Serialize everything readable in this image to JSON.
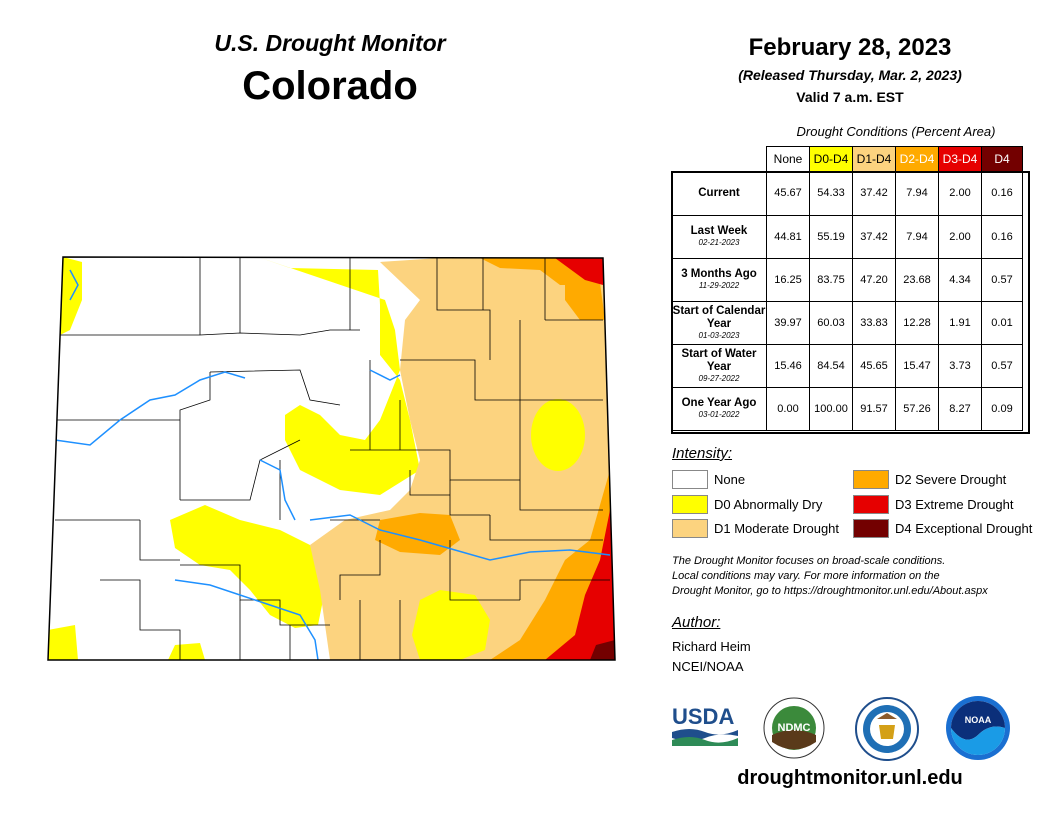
{
  "header": {
    "subtitle": "U.S. Drought Monitor",
    "state": "Colorado",
    "date": "February 28, 2023",
    "released": "(Released Thursday, Mar. 2, 2023)",
    "valid": "Valid 7 a.m. EST"
  },
  "table": {
    "caption": "Drought Conditions (Percent Area)",
    "columns": [
      {
        "label": "None",
        "color": "#ffffff"
      },
      {
        "label": "D0-D4",
        "color": "#ffff00"
      },
      {
        "label": "D1-D4",
        "color": "#fcd37f"
      },
      {
        "label": "D2-D4",
        "color": "#ffaa00"
      },
      {
        "label": "D3-D4",
        "color": "#e60000"
      },
      {
        "label": "D4",
        "color": "#730000"
      }
    ],
    "rows": [
      {
        "label": "Current",
        "date": "",
        "values": [
          "45.67",
          "54.33",
          "37.42",
          "7.94",
          "2.00",
          "0.16"
        ]
      },
      {
        "label": "Last Week",
        "date": "02-21-2023",
        "values": [
          "44.81",
          "55.19",
          "37.42",
          "7.94",
          "2.00",
          "0.16"
        ]
      },
      {
        "label": "3 Months Ago",
        "date": "11-29-2022",
        "values": [
          "16.25",
          "83.75",
          "47.20",
          "23.68",
          "4.34",
          "0.57"
        ]
      },
      {
        "label": "Start of Calendar Year",
        "date": "01-03-2023",
        "values": [
          "39.97",
          "60.03",
          "33.83",
          "12.28",
          "1.91",
          "0.01"
        ]
      },
      {
        "label": "Start of Water Year",
        "date": "09-27-2022",
        "values": [
          "15.46",
          "84.54",
          "45.65",
          "15.47",
          "3.73",
          "0.57"
        ]
      },
      {
        "label": "One Year Ago",
        "date": "03-01-2022",
        "values": [
          "0.00",
          "100.00",
          "91.57",
          "57.26",
          "8.27",
          "0.09"
        ]
      }
    ]
  },
  "legend": {
    "title": "Intensity:",
    "items": [
      {
        "label": "None",
        "color": "#ffffff"
      },
      {
        "label": "D0 Abnormally Dry",
        "color": "#ffff00"
      },
      {
        "label": "D1 Moderate Drought",
        "color": "#fcd37f"
      },
      {
        "label": "D2 Severe Drought",
        "color": "#ffaa00"
      },
      {
        "label": "D3 Extreme Drought",
        "color": "#e60000"
      },
      {
        "label": "D4 Exceptional Drought",
        "color": "#730000"
      }
    ]
  },
  "note": {
    "line1": "The Drought Monitor focuses on broad-scale conditions.",
    "line2": "Local conditions may vary. For more information on the",
    "line3": "Drought Monitor, go to https://droughtmonitor.unl.edu/About.aspx"
  },
  "author": {
    "title": "Author:",
    "name": "Richard Heim",
    "org": "NCEI/NOAA"
  },
  "logos": {
    "usda": "USDA",
    "ndmc": "NDMC",
    "noaa": "NOAA"
  },
  "website": "droughtmonitor.unl.edu",
  "map": {
    "state": "Colorado",
    "colors": {
      "none": "#ffffff",
      "d0": "#ffff00",
      "d1": "#fcd37f",
      "d2": "#ffaa00",
      "d3": "#e60000",
      "d4": "#730000",
      "river": "#1e90ff",
      "county": "#000000"
    }
  }
}
